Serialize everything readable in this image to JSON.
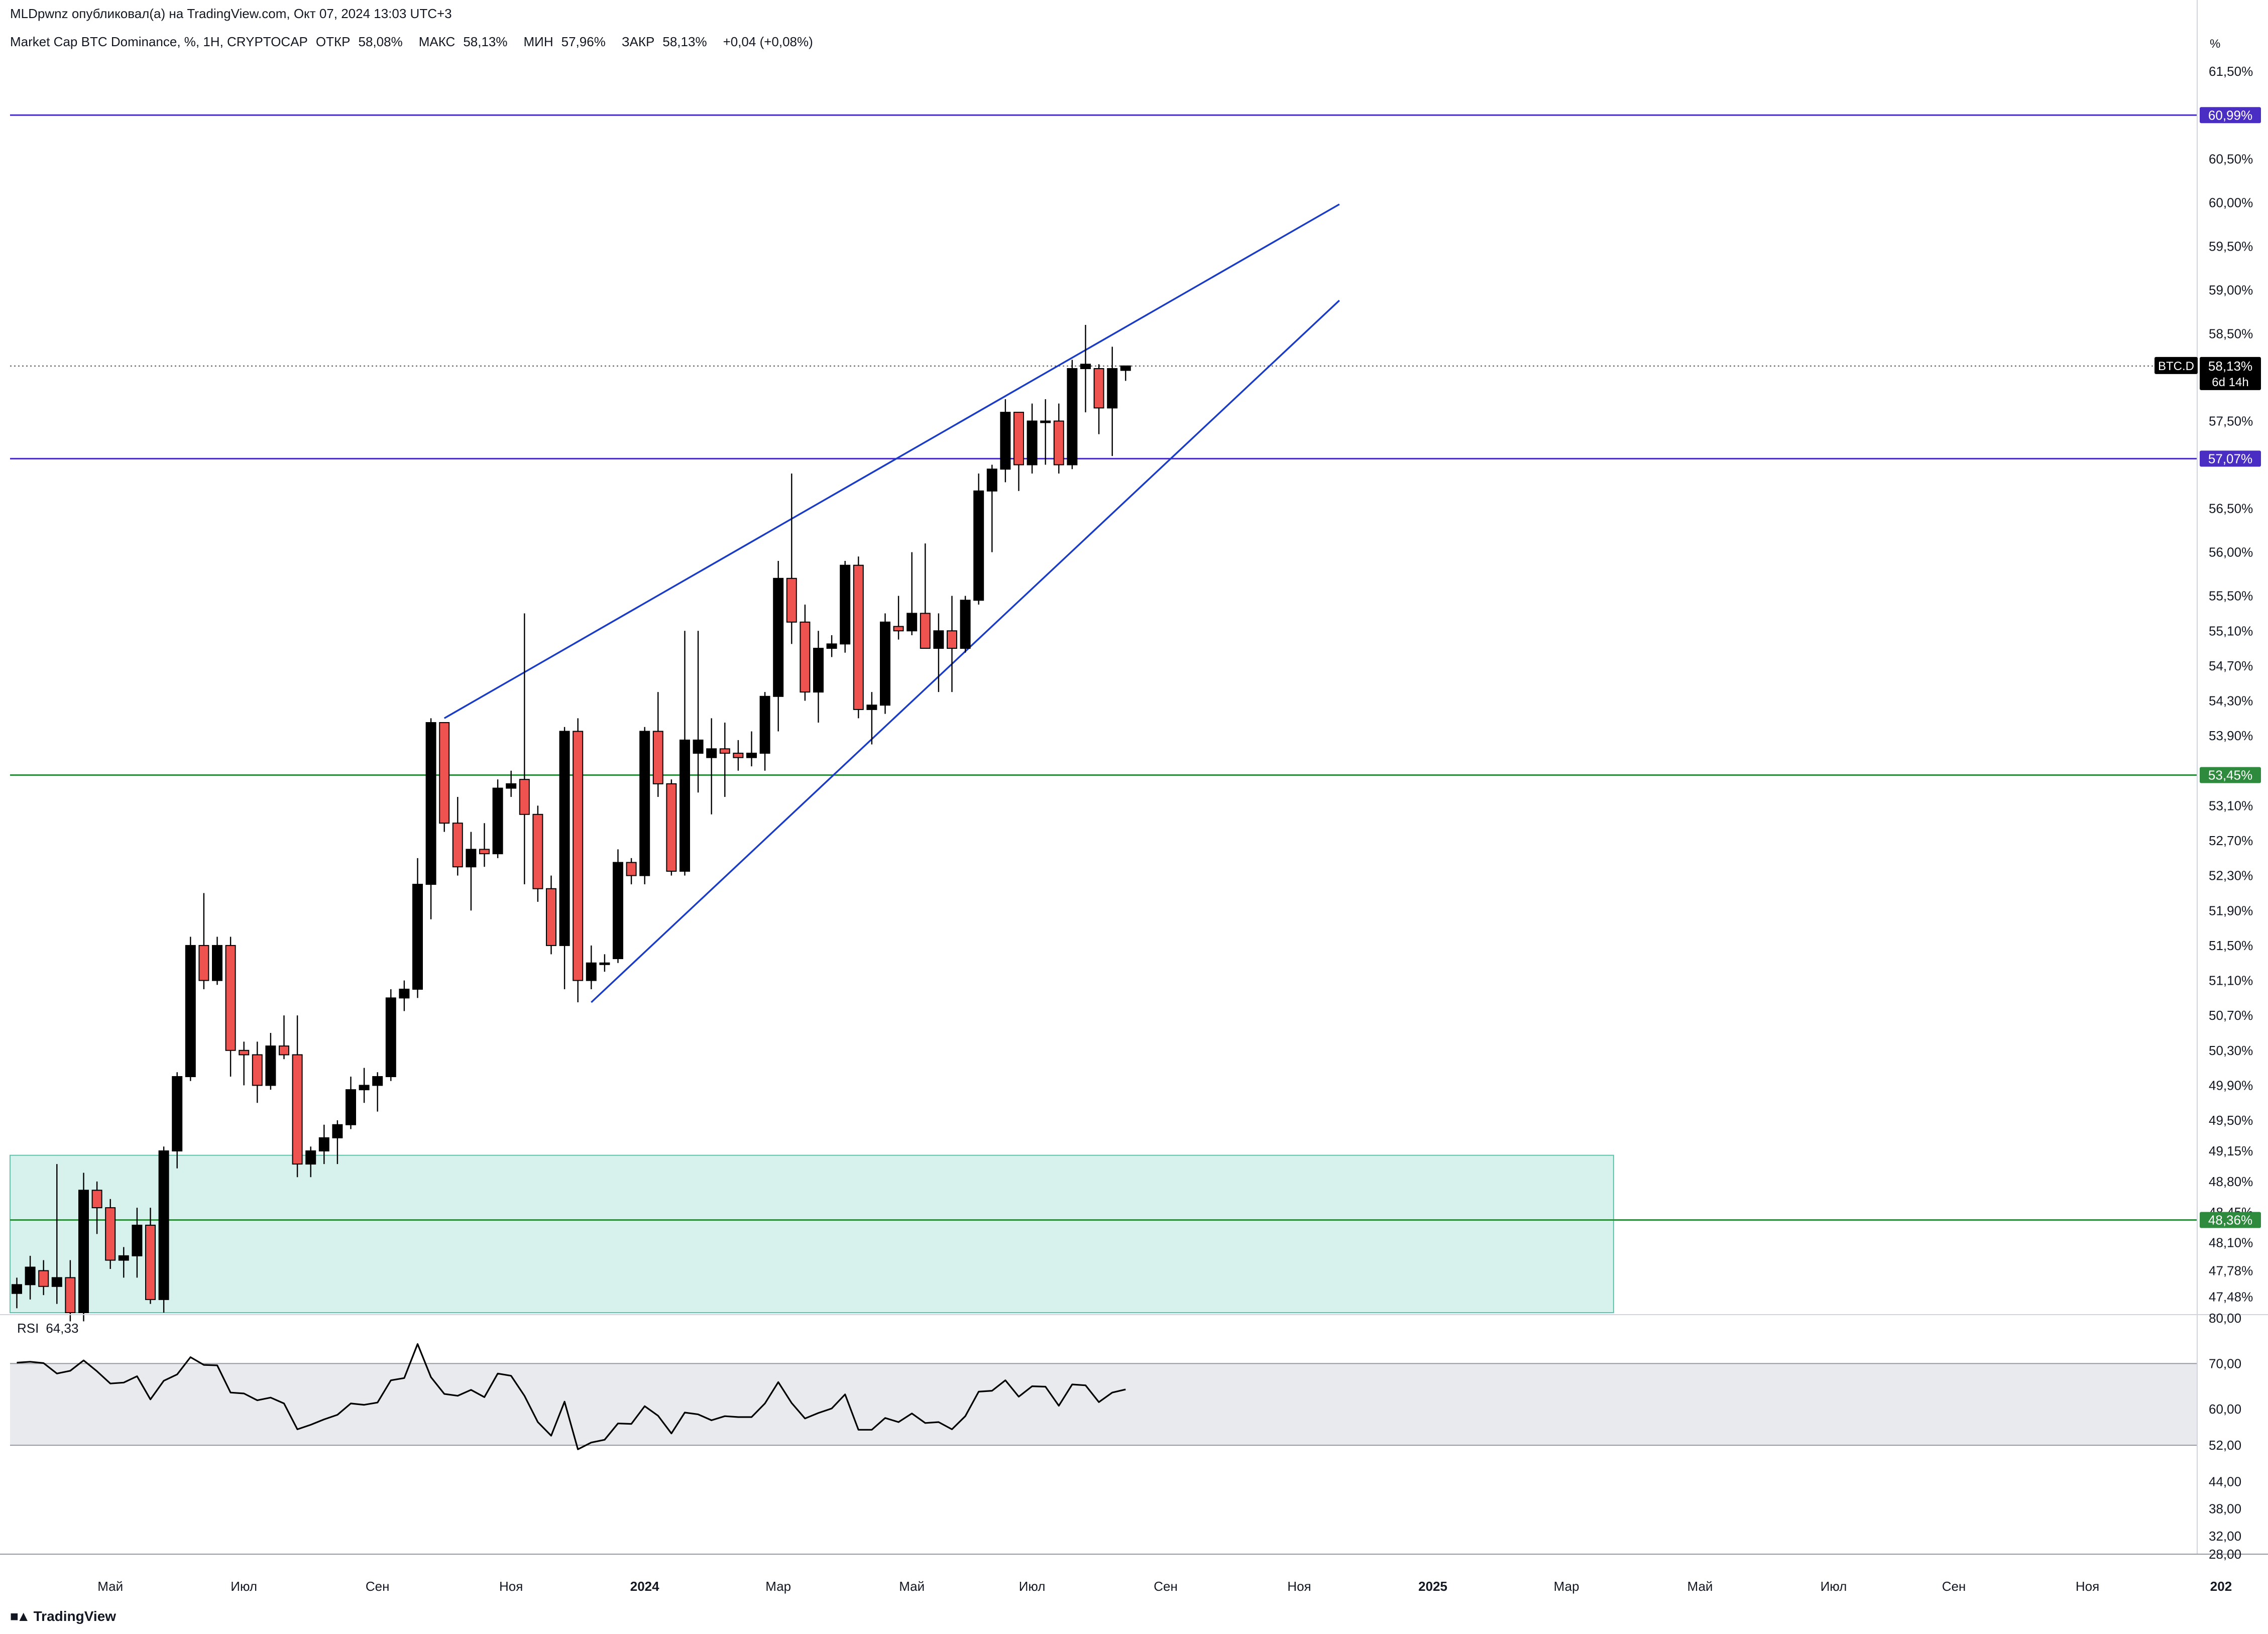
{
  "header": {
    "author_line": "MLDpwnz опубликовал(а) на TradingView.com, Окт 07, 2024 13:03 UTC+3",
    "symbol_title": "Market Cap BTC Dominance, %, 1H, CRYPTOCAP",
    "ohlc": {
      "open_label": "ОТКР",
      "open": "58,08%",
      "high_label": "МАКС",
      "high": "58,13%",
      "low_label": "МИН",
      "low": "57,96%",
      "close_label": "ЗАКР",
      "close": "58,13%",
      "change": "+0,04 (+0,08%)"
    }
  },
  "brand": {
    "logo_icon": "tradingview-logo-icon",
    "name": "TradingView"
  },
  "colors": {
    "up_candle": "#000000",
    "down_candle": "#ef5350",
    "purple_level": "#4a2ec4",
    "green_level": "#2e8b3e",
    "channel_line": "#1a3cc4",
    "zone_fill": "#d7f2ec",
    "zone_border": "#5fc3ad",
    "rsi_band": "#e9eaee",
    "rsi_line": "#000000"
  },
  "chart_data": {
    "type": "candlestick",
    "price_axis": {
      "unit_label": "%",
      "ylim": [
        47.3,
        61.8
      ],
      "ticks": [
        "61,50%",
        "60,50%",
        "60,00%",
        "59,50%",
        "59,00%",
        "58,50%",
        "57,50%",
        "56,50%",
        "56,00%",
        "55,50%",
        "55,10%",
        "54,70%",
        "54,30%",
        "53,90%",
        "53,10%",
        "52,70%",
        "52,30%",
        "51,90%",
        "51,50%",
        "51,10%",
        "50,70%",
        "50,30%",
        "49,90%",
        "49,50%",
        "49,15%",
        "48,80%",
        "48,45%",
        "48,10%",
        "47,78%",
        "47,48%"
      ],
      "tick_values": [
        61.5,
        60.5,
        60.0,
        59.5,
        59.0,
        58.5,
        57.5,
        56.5,
        56.0,
        55.5,
        55.1,
        54.7,
        54.3,
        53.9,
        53.1,
        52.7,
        52.3,
        51.9,
        51.5,
        51.1,
        50.7,
        50.3,
        49.9,
        49.5,
        49.15,
        48.8,
        48.45,
        48.1,
        47.78,
        47.48
      ]
    },
    "time_axis": {
      "labels": [
        "Май",
        "Июл",
        "Сен",
        "Ноя",
        "2024",
        "Мар",
        "Май",
        "Июл",
        "Сен",
        "Ноя",
        "2025",
        "Мар",
        "Май",
        "Июл",
        "Сен",
        "Ноя",
        "202"
      ],
      "bold": [
        false,
        false,
        false,
        false,
        true,
        false,
        false,
        false,
        false,
        false,
        true,
        false,
        false,
        false,
        false,
        false,
        true
      ],
      "bar_index": [
        7,
        17,
        27,
        37,
        47,
        57,
        67,
        76,
        86,
        96,
        106,
        116,
        126,
        136,
        145,
        155,
        165
      ]
    },
    "candles": [
      {
        "o": 47.52,
        "h": 47.7,
        "l": 47.35,
        "c": 47.62
      },
      {
        "o": 47.62,
        "h": 47.95,
        "l": 47.45,
        "c": 47.82
      },
      {
        "o": 47.78,
        "h": 47.9,
        "l": 47.5,
        "c": 47.6
      },
      {
        "o": 47.6,
        "h": 49.0,
        "l": 47.4,
        "c": 47.7
      },
      {
        "o": 47.7,
        "h": 47.9,
        "l": 47.2,
        "c": 47.3
      },
      {
        "o": 47.3,
        "h": 48.9,
        "l": 47.2,
        "c": 48.7
      },
      {
        "o": 48.7,
        "h": 48.8,
        "l": 48.2,
        "c": 48.5
      },
      {
        "o": 48.5,
        "h": 48.6,
        "l": 47.8,
        "c": 47.9
      },
      {
        "o": 47.9,
        "h": 48.05,
        "l": 47.7,
        "c": 47.95
      },
      {
        "o": 47.95,
        "h": 48.5,
        "l": 47.7,
        "c": 48.3
      },
      {
        "o": 48.3,
        "h": 48.5,
        "l": 47.4,
        "c": 47.45
      },
      {
        "o": 47.45,
        "h": 49.2,
        "l": 47.3,
        "c": 49.15
      },
      {
        "o": 49.15,
        "h": 50.05,
        "l": 48.95,
        "c": 50.0
      },
      {
        "o": 50.0,
        "h": 51.6,
        "l": 49.95,
        "c": 51.5
      },
      {
        "o": 51.5,
        "h": 52.1,
        "l": 51.0,
        "c": 51.1
      },
      {
        "o": 51.1,
        "h": 51.6,
        "l": 51.05,
        "c": 51.5
      },
      {
        "o": 51.5,
        "h": 51.6,
        "l": 50.0,
        "c": 50.3
      },
      {
        "o": 50.3,
        "h": 50.4,
        "l": 49.9,
        "c": 50.25
      },
      {
        "o": 50.25,
        "h": 50.4,
        "l": 49.7,
        "c": 49.9
      },
      {
        "o": 49.9,
        "h": 50.5,
        "l": 49.85,
        "c": 50.35
      },
      {
        "o": 50.35,
        "h": 50.7,
        "l": 50.2,
        "c": 50.25
      },
      {
        "o": 50.25,
        "h": 50.7,
        "l": 48.85,
        "c": 49.0
      },
      {
        "o": 49.0,
        "h": 49.2,
        "l": 48.85,
        "c": 49.15
      },
      {
        "o": 49.15,
        "h": 49.45,
        "l": 49.0,
        "c": 49.3
      },
      {
        "o": 49.3,
        "h": 49.5,
        "l": 49.0,
        "c": 49.45
      },
      {
        "o": 49.45,
        "h": 50.0,
        "l": 49.4,
        "c": 49.85
      },
      {
        "o": 49.85,
        "h": 50.1,
        "l": 49.7,
        "c": 49.9
      },
      {
        "o": 49.9,
        "h": 50.05,
        "l": 49.6,
        "c": 50.0
      },
      {
        "o": 50.0,
        "h": 51.0,
        "l": 49.95,
        "c": 50.9
      },
      {
        "o": 50.9,
        "h": 51.1,
        "l": 50.75,
        "c": 51.0
      },
      {
        "o": 51.0,
        "h": 52.5,
        "l": 50.9,
        "c": 52.2
      },
      {
        "o": 52.2,
        "h": 54.1,
        "l": 51.8,
        "c": 54.05
      },
      {
        "o": 54.05,
        "h": 54.05,
        "l": 52.8,
        "c": 52.9
      },
      {
        "o": 52.9,
        "h": 53.2,
        "l": 52.3,
        "c": 52.4
      },
      {
        "o": 52.4,
        "h": 52.8,
        "l": 51.9,
        "c": 52.6
      },
      {
        "o": 52.6,
        "h": 52.9,
        "l": 52.4,
        "c": 52.55
      },
      {
        "o": 52.55,
        "h": 53.4,
        "l": 52.5,
        "c": 53.3
      },
      {
        "o": 53.3,
        "h": 53.5,
        "l": 53.2,
        "c": 53.35
      },
      {
        "o": 53.4,
        "h": 55.3,
        "l": 52.2,
        "c": 53.0
      },
      {
        "o": 53.0,
        "h": 53.1,
        "l": 52.0,
        "c": 52.15
      },
      {
        "o": 52.15,
        "h": 52.3,
        "l": 51.4,
        "c": 51.5
      },
      {
        "o": 51.5,
        "h": 54.0,
        "l": 51.0,
        "c": 53.95
      },
      {
        "o": 53.95,
        "h": 54.1,
        "l": 50.85,
        "c": 51.1
      },
      {
        "o": 51.1,
        "h": 51.5,
        "l": 51.0,
        "c": 51.3
      },
      {
        "o": 51.3,
        "h": 51.4,
        "l": 51.2,
        "c": 51.3
      },
      {
        "o": 51.35,
        "h": 52.6,
        "l": 51.3,
        "c": 52.45
      },
      {
        "o": 52.45,
        "h": 52.5,
        "l": 52.2,
        "c": 52.3
      },
      {
        "o": 52.3,
        "h": 54.0,
        "l": 52.2,
        "c": 53.95
      },
      {
        "o": 53.95,
        "h": 54.4,
        "l": 53.2,
        "c": 53.35
      },
      {
        "o": 53.35,
        "h": 53.4,
        "l": 52.3,
        "c": 52.35
      },
      {
        "o": 52.35,
        "h": 55.1,
        "l": 52.3,
        "c": 53.85
      },
      {
        "o": 53.7,
        "h": 55.1,
        "l": 53.25,
        "c": 53.85
      },
      {
        "o": 53.65,
        "h": 54.1,
        "l": 53.0,
        "c": 53.75
      },
      {
        "o": 53.75,
        "h": 54.05,
        "l": 53.2,
        "c": 53.7
      },
      {
        "o": 53.7,
        "h": 53.85,
        "l": 53.5,
        "c": 53.65
      },
      {
        "o": 53.65,
        "h": 53.95,
        "l": 53.55,
        "c": 53.7
      },
      {
        "o": 53.7,
        "h": 54.4,
        "l": 53.5,
        "c": 54.35
      },
      {
        "o": 54.35,
        "h": 55.9,
        "l": 53.95,
        "c": 55.7
      },
      {
        "o": 55.7,
        "h": 56.9,
        "l": 54.95,
        "c": 55.2
      },
      {
        "o": 55.2,
        "h": 55.4,
        "l": 54.3,
        "c": 54.4
      },
      {
        "o": 54.4,
        "h": 55.1,
        "l": 54.05,
        "c": 54.9
      },
      {
        "o": 54.9,
        "h": 55.05,
        "l": 54.8,
        "c": 54.95
      },
      {
        "o": 54.95,
        "h": 55.9,
        "l": 54.85,
        "c": 55.85
      },
      {
        "o": 55.85,
        "h": 55.95,
        "l": 54.1,
        "c": 54.2
      },
      {
        "o": 54.2,
        "h": 54.4,
        "l": 53.8,
        "c": 54.25
      },
      {
        "o": 54.25,
        "h": 55.3,
        "l": 54.15,
        "c": 55.2
      },
      {
        "o": 55.15,
        "h": 55.5,
        "l": 55.0,
        "c": 55.1
      },
      {
        "o": 55.1,
        "h": 56.0,
        "l": 55.05,
        "c": 55.3
      },
      {
        "o": 55.3,
        "h": 56.1,
        "l": 54.9,
        "c": 54.9
      },
      {
        "o": 54.9,
        "h": 55.3,
        "l": 54.4,
        "c": 55.1
      },
      {
        "o": 55.1,
        "h": 55.5,
        "l": 54.4,
        "c": 54.9
      },
      {
        "o": 54.9,
        "h": 55.5,
        "l": 54.85,
        "c": 55.45
      },
      {
        "o": 55.45,
        "h": 56.9,
        "l": 55.4,
        "c": 56.7
      },
      {
        "o": 56.7,
        "h": 57.0,
        "l": 56.0,
        "c": 56.95
      },
      {
        "o": 56.95,
        "h": 57.75,
        "l": 56.8,
        "c": 57.6
      },
      {
        "o": 57.6,
        "h": 57.6,
        "l": 56.7,
        "c": 57.0
      },
      {
        "o": 57.0,
        "h": 57.7,
        "l": 56.9,
        "c": 57.5
      },
      {
        "o": 57.5,
        "h": 57.75,
        "l": 57.0,
        "c": 57.5
      },
      {
        "o": 57.5,
        "h": 57.7,
        "l": 56.9,
        "c": 57.0
      },
      {
        "o": 57.0,
        "h": 58.2,
        "l": 56.95,
        "c": 58.1
      },
      {
        "o": 58.1,
        "h": 58.6,
        "l": 57.6,
        "c": 58.15
      },
      {
        "o": 58.1,
        "h": 58.15,
        "l": 57.35,
        "c": 57.65
      },
      {
        "o": 57.65,
        "h": 58.35,
        "l": 57.1,
        "c": 58.1
      },
      {
        "o": 58.08,
        "h": 58.13,
        "l": 57.96,
        "c": 58.13
      }
    ],
    "levels": [
      {
        "name": "purple-level-top",
        "value": 61.0,
        "label": "60,99%",
        "color": "purple"
      },
      {
        "name": "purple-level-mid",
        "value": 57.07,
        "label": "57,07%",
        "color": "purple"
      },
      {
        "name": "green-level-upper",
        "value": 53.45,
        "label": "53,45%",
        "color": "green"
      },
      {
        "name": "green-level-lower",
        "value": 48.36,
        "label": "48,36%",
        "color": "green"
      }
    ],
    "last_price": {
      "symbol": "BTC.D",
      "value": 58.13,
      "label": "58,13%",
      "countdown": "6d 14h"
    },
    "trendlines": [
      {
        "name": "channel-upper-line",
        "from": {
          "bar": 32,
          "price": 54.1
        },
        "to": {
          "bar": 99,
          "price": 59.98
        }
      },
      {
        "name": "channel-lower-line",
        "from": {
          "bar": 43,
          "price": 50.85
        },
        "to": {
          "bar": 99,
          "price": 58.88
        }
      }
    ],
    "demand_zone": {
      "from_bar": 0,
      "to_bar": 119,
      "top": 49.1,
      "bottom": 47.3
    },
    "rsi": {
      "label": "RSI",
      "value": "64,33",
      "ylim": [
        28.0,
        80.0
      ],
      "ticks": [
        "80,00",
        "70,00",
        "60,00",
        "52,00",
        "44,00",
        "38,00",
        "32,00",
        "28,00"
      ],
      "tick_values": [
        80,
        70,
        60,
        52,
        44,
        38,
        32,
        28
      ],
      "band": [
        52.0,
        70.0
      ],
      "values": [
        70.2,
        70.4,
        70.1,
        67.8,
        68.4,
        70.7,
        68.3,
        65.6,
        65.8,
        67.2,
        62.1,
        66.2,
        67.6,
        71.4,
        69.7,
        69.6,
        63.6,
        63.4,
        61.9,
        62.5,
        61.2,
        55.5,
        56.5,
        57.7,
        58.7,
        61.2,
        60.9,
        61.4,
        66.3,
        66.8,
        74.3,
        67.0,
        63.3,
        62.9,
        64.2,
        62.6,
        67.8,
        67.3,
        62.9,
        57.1,
        54.1,
        61.6,
        51.1,
        52.6,
        53.2,
        56.8,
        56.7,
        60.6,
        58.5,
        54.6,
        59.2,
        58.8,
        57.5,
        58.4,
        58.2,
        58.2,
        61.2,
        65.9,
        61.3,
        57.9,
        59.1,
        60.1,
        63.2,
        55.4,
        55.4,
        58.0,
        57.1,
        59.0,
        56.9,
        57.1,
        55.5,
        58.4,
        63.8,
        64.0,
        66.3,
        62.7,
        65.0,
        64.9,
        60.7,
        65.4,
        65.2,
        61.5,
        63.6,
        64.3
      ]
    }
  }
}
